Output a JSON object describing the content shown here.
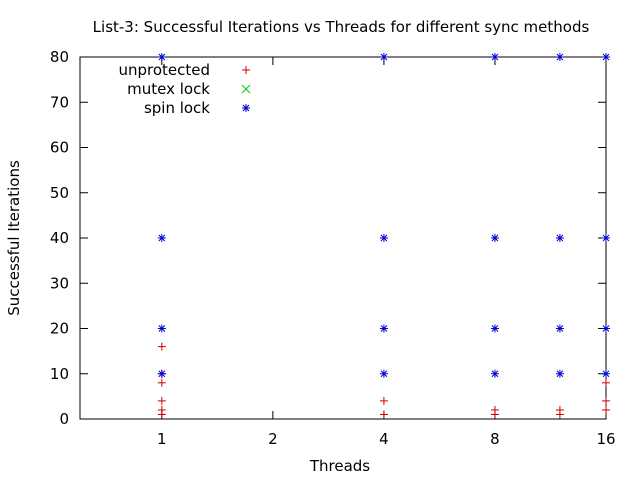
{
  "chart_data": {
    "type": "scatter",
    "title": "List-3: Successful Iterations vs Threads for different sync methods",
    "xlabel": "Threads",
    "ylabel": "Successful Iterations",
    "x_scale": "log2",
    "xlim": [
      0.6,
      16
    ],
    "ylim": [
      0,
      80
    ],
    "x_ticks": [
      1,
      2,
      4,
      8,
      16
    ],
    "y_ticks": [
      0,
      10,
      20,
      30,
      40,
      50,
      60,
      70,
      80
    ],
    "grid": false,
    "legend_position": "top-left",
    "series": [
      {
        "name": "unprotected",
        "color": "#cc0000",
        "marker": "plus",
        "x": [
          1,
          1,
          1,
          1,
          1,
          1,
          4,
          4,
          8,
          8,
          12,
          12,
          16,
          16,
          16
        ],
        "y": [
          1,
          2,
          4,
          8,
          10,
          16,
          1,
          4,
          1,
          2,
          1,
          2,
          2,
          4,
          8
        ]
      },
      {
        "name": "mutex lock",
        "color": "#00cc00",
        "marker": "cross",
        "x": [],
        "y": []
      },
      {
        "name": "spin lock",
        "color": "#0000cc",
        "marker": "star",
        "x": [
          1,
          1,
          1,
          1,
          4,
          4,
          4,
          4,
          8,
          8,
          8,
          8,
          12,
          12,
          12,
          12,
          16,
          16,
          16,
          16
        ],
        "y": [
          10,
          20,
          40,
          80,
          10,
          20,
          40,
          80,
          10,
          20,
          40,
          80,
          10,
          20,
          40,
          80,
          10,
          20,
          40,
          80
        ]
      }
    ]
  }
}
